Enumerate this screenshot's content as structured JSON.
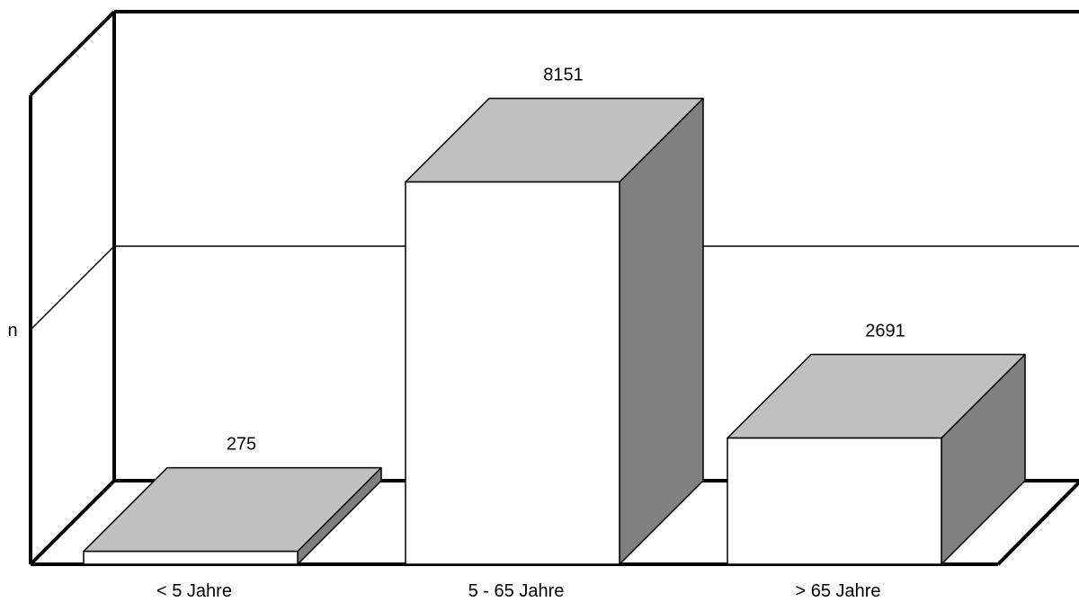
{
  "chart_data": {
    "type": "bar",
    "categories": [
      "< 5 Jahre",
      "5 - 65 Jahre",
      "> 65 Jahre"
    ],
    "values": [
      275,
      8151,
      2691
    ],
    "ylabel": "n",
    "ylim": [
      0,
      10000
    ],
    "grid": true,
    "style": "3d",
    "colors": {
      "front": "#ffffff",
      "top": "#c0c0c0",
      "side": "#808080",
      "stroke": "#000000"
    }
  }
}
